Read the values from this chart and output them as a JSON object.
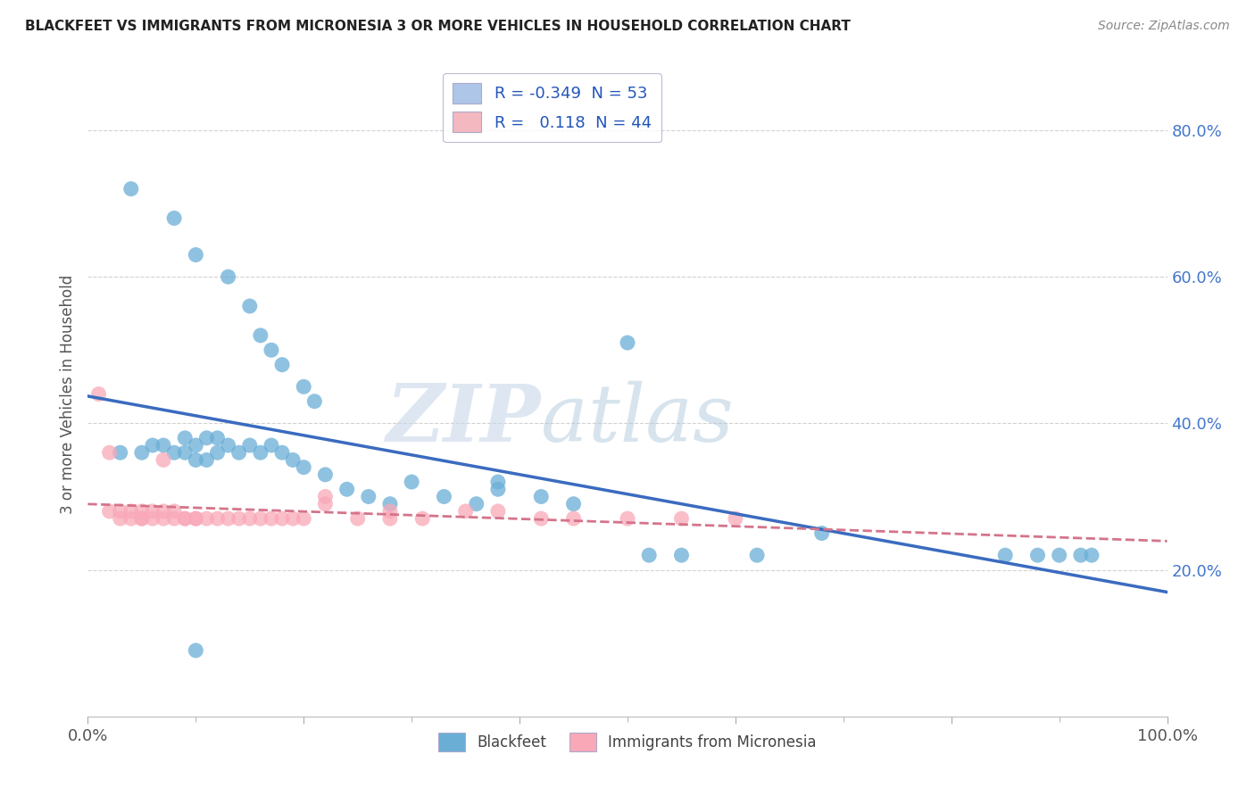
{
  "title": "BLACKFEET VS IMMIGRANTS FROM MICRONESIA 3 OR MORE VEHICLES IN HOUSEHOLD CORRELATION CHART",
  "source": "Source: ZipAtlas.com",
  "ylabel": "3 or more Vehicles in Household",
  "xlim": [
    0.0,
    1.0
  ],
  "ylim": [
    0.0,
    0.88
  ],
  "xticks": [
    0.0,
    0.2,
    0.4,
    0.6,
    0.8,
    1.0
  ],
  "yticks": [
    0.2,
    0.4,
    0.6,
    0.8
  ],
  "ytick_labels": [
    "20.0%",
    "40.0%",
    "60.0%",
    "80.0%"
  ],
  "xtick_labels_bottom": [
    "0.0%",
    "",
    "",
    "",
    "",
    "100.0%"
  ],
  "legend_entries": [
    {
      "label": "R = -0.349  N = 53",
      "color": "#aec6e8"
    },
    {
      "label": "R =   0.118  N = 44",
      "color": "#f4b8c1"
    }
  ],
  "watermark_zip": "ZIP",
  "watermark_atlas": "atlas",
  "blue_color": "#6aaed6",
  "pink_color": "#f9a8b8",
  "blue_line_color": "#3a6bbf",
  "pink_line_color": "#d4748a",
  "blue_x": [
    0.04,
    0.08,
    0.1,
    0.13,
    0.15,
    0.16,
    0.17,
    0.18,
    0.2,
    0.21,
    0.03,
    0.05,
    0.06,
    0.07,
    0.08,
    0.09,
    0.09,
    0.1,
    0.1,
    0.11,
    0.11,
    0.12,
    0.12,
    0.13,
    0.14,
    0.15,
    0.16,
    0.17,
    0.18,
    0.19,
    0.2,
    0.22,
    0.24,
    0.26,
    0.28,
    0.3,
    0.33,
    0.36,
    0.38,
    0.42,
    0.45,
    0.52,
    0.55,
    0.62,
    0.68,
    0.85,
    0.88,
    0.9,
    0.92,
    0.93,
    0.5,
    0.38,
    0.1
  ],
  "blue_y": [
    0.72,
    0.68,
    0.63,
    0.6,
    0.56,
    0.52,
    0.5,
    0.48,
    0.45,
    0.43,
    0.36,
    0.36,
    0.37,
    0.37,
    0.36,
    0.38,
    0.36,
    0.37,
    0.35,
    0.38,
    0.35,
    0.38,
    0.36,
    0.37,
    0.36,
    0.37,
    0.36,
    0.37,
    0.36,
    0.35,
    0.34,
    0.33,
    0.31,
    0.3,
    0.29,
    0.32,
    0.3,
    0.29,
    0.31,
    0.3,
    0.29,
    0.22,
    0.22,
    0.22,
    0.25,
    0.22,
    0.22,
    0.22,
    0.22,
    0.22,
    0.51,
    0.32,
    0.09
  ],
  "pink_x": [
    0.01,
    0.02,
    0.02,
    0.03,
    0.03,
    0.04,
    0.04,
    0.05,
    0.05,
    0.06,
    0.06,
    0.07,
    0.07,
    0.08,
    0.08,
    0.09,
    0.09,
    0.1,
    0.1,
    0.11,
    0.12,
    0.13,
    0.14,
    0.15,
    0.16,
    0.17,
    0.18,
    0.19,
    0.2,
    0.22,
    0.25,
    0.28,
    0.31,
    0.35,
    0.38,
    0.42,
    0.45,
    0.5,
    0.55,
    0.6,
    0.22,
    0.28,
    0.05,
    0.07
  ],
  "pink_y": [
    0.44,
    0.36,
    0.28,
    0.28,
    0.27,
    0.28,
    0.27,
    0.28,
    0.27,
    0.28,
    0.27,
    0.28,
    0.27,
    0.28,
    0.27,
    0.27,
    0.27,
    0.27,
    0.27,
    0.27,
    0.27,
    0.27,
    0.27,
    0.27,
    0.27,
    0.27,
    0.27,
    0.27,
    0.27,
    0.29,
    0.27,
    0.27,
    0.27,
    0.28,
    0.28,
    0.27,
    0.27,
    0.27,
    0.27,
    0.27,
    0.3,
    0.28,
    0.27,
    0.35
  ]
}
